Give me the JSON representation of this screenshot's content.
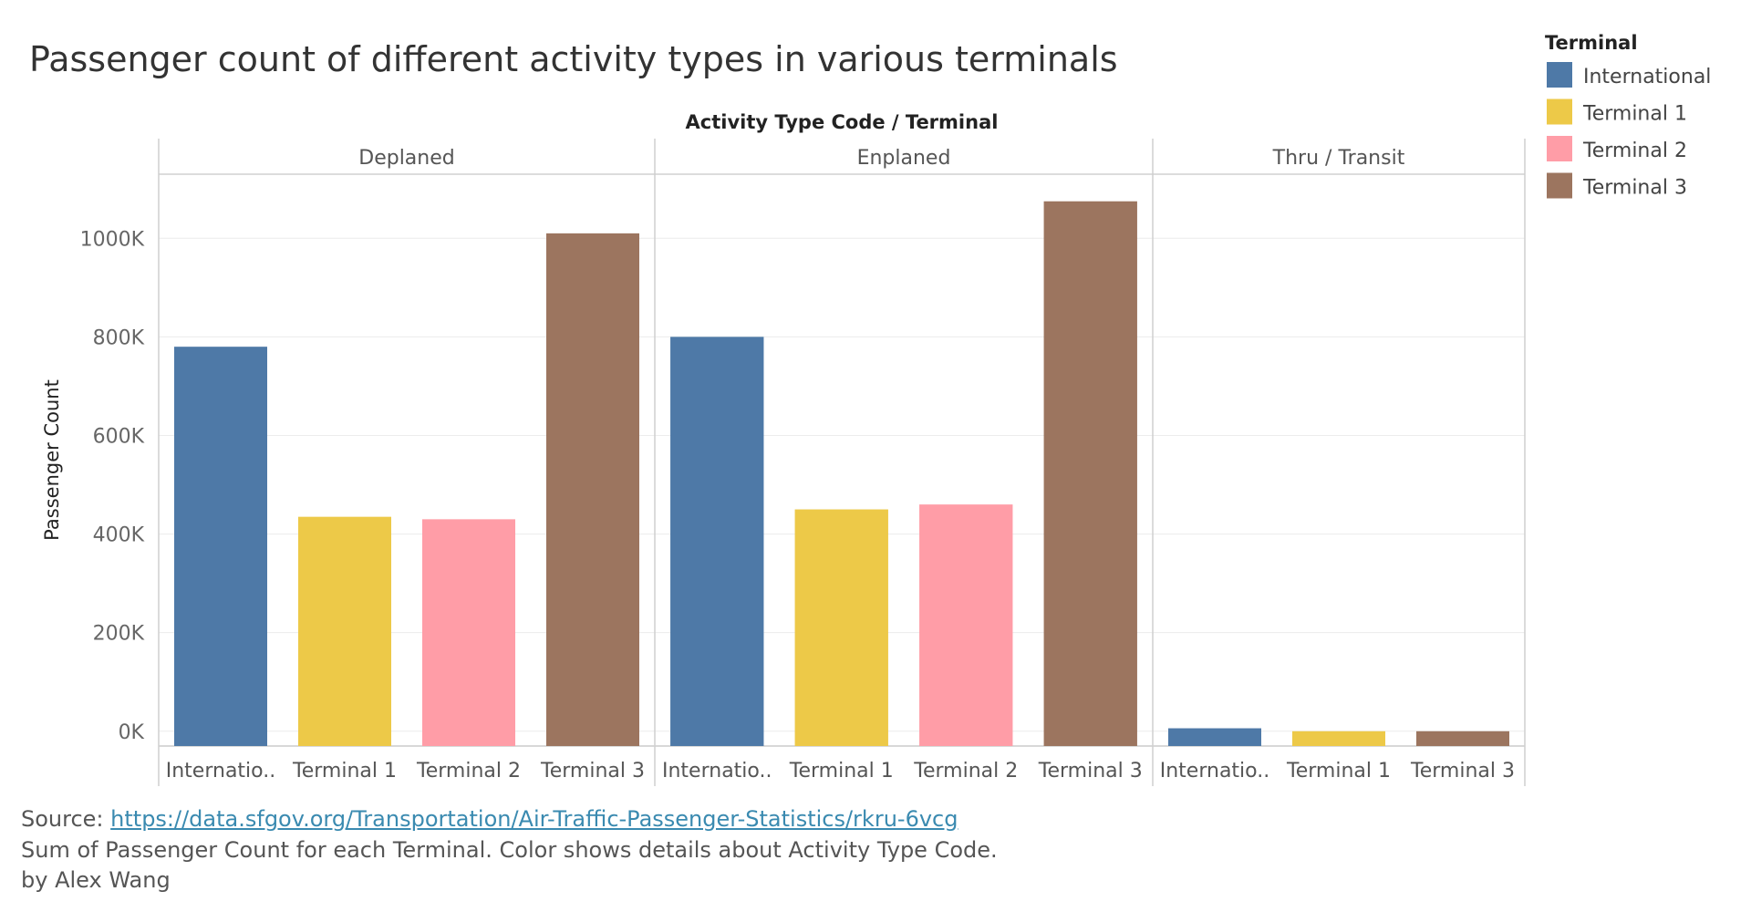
{
  "chart_data": {
    "type": "bar",
    "title": "Passenger count of different activity types in various terminals",
    "column_header": "Activity Type Code  /  Terminal",
    "ylabel": "Passenger Count",
    "ylim": [
      -30000,
      1130000
    ],
    "yticks": [
      0,
      200000,
      400000,
      600000,
      800000,
      1000000
    ],
    "ytick_labels": [
      "0K",
      "200K",
      "400K",
      "600K",
      "800K",
      "1000K"
    ],
    "grid": true,
    "legend_position": "top-right",
    "legend_title": "Terminal",
    "categories": [
      "International",
      "Terminal 1",
      "Terminal 2",
      "Terminal 3"
    ],
    "colors": {
      "International": "#4e79a7",
      "Terminal 1": "#edc948",
      "Terminal 2": "#ff9da7",
      "Terminal 3": "#9c755f"
    },
    "panels": [
      {
        "name": "Deplaned",
        "tick_labels": [
          "Internatio..",
          "Terminal 1",
          "Terminal 2",
          "Terminal 3"
        ],
        "values": [
          780000,
          435000,
          430000,
          1010000
        ]
      },
      {
        "name": "Enplaned",
        "tick_labels": [
          "Internatio..",
          "Terminal 1",
          "Terminal 2",
          "Terminal 3"
        ],
        "values": [
          800000,
          450000,
          460000,
          1075000
        ]
      },
      {
        "name": "Thru / Transit",
        "tick_labels": [
          "Internatio..",
          "Terminal 1",
          "Terminal 3"
        ],
        "categories": [
          "International",
          "Terminal 1",
          "Terminal 3"
        ],
        "values": [
          6000,
          0,
          0
        ]
      }
    ]
  },
  "footer": {
    "source_label": "Source: ",
    "source_link": "https://data.sfgov.org/Transportation/Air-Traffic-Passenger-Statistics/rkru-6vcg",
    "description": "Sum of Passenger Count for each Terminal.  Color shows details about Activity Type Code.",
    "author": "by Alex Wang"
  }
}
